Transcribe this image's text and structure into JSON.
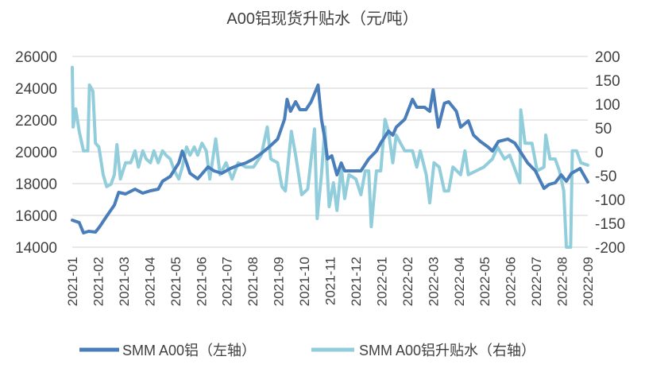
{
  "chart_data": {
    "type": "line",
    "title": "A00铝现货升贴水（元/吨）",
    "xlabel": "",
    "ylabel": "",
    "grid": true,
    "legend_position": "bottom",
    "x_ticks": [
      "2021-01",
      "2021-02",
      "2021-03",
      "2021-04",
      "2021-05",
      "2021-06",
      "2021-07",
      "2021-08",
      "2021-09",
      "2021-10",
      "2021-11",
      "2021-12",
      "2022-01",
      "2022-02",
      "2022-03",
      "2022-04",
      "2022-05",
      "2022-06",
      "2022-07",
      "2022-08",
      "2022-09"
    ],
    "y_left": {
      "range": [
        14000,
        26000
      ],
      "ticks": [
        "14000",
        "16000",
        "18000",
        "20000",
        "22000",
        "24000",
        "26000"
      ]
    },
    "y_right": {
      "range": [
        -200,
        200
      ],
      "ticks": [
        "-200",
        "-150",
        "-100",
        "-50",
        "0",
        "50",
        "100",
        "150",
        "200"
      ]
    },
    "series": [
      {
        "name": "SMM A00铝（左轴）",
        "axis": "left",
        "color": "#4a7ebb",
        "points": [
          [
            "2021-01-01",
            15700
          ],
          [
            "2021-01-09",
            15550
          ],
          [
            "2021-01-14",
            14900
          ],
          [
            "2021-01-20",
            15000
          ],
          [
            "2021-01-28",
            14950
          ],
          [
            "2021-02-03",
            15300
          ],
          [
            "2021-02-11",
            15950
          ],
          [
            "2021-02-20",
            16650
          ],
          [
            "2021-02-25",
            17450
          ],
          [
            "2021-03-03",
            17350
          ],
          [
            "2021-03-14",
            17650
          ],
          [
            "2021-03-23",
            17400
          ],
          [
            "2021-04-02",
            17550
          ],
          [
            "2021-04-11",
            17650
          ],
          [
            "2021-04-16",
            18150
          ],
          [
            "2021-04-25",
            18450
          ],
          [
            "2021-05-05",
            19300
          ],
          [
            "2021-05-09",
            20050
          ],
          [
            "2021-05-14",
            19300
          ],
          [
            "2021-05-18",
            18650
          ],
          [
            "2021-05-27",
            18300
          ],
          [
            "2021-06-09",
            19050
          ],
          [
            "2021-06-16",
            18800
          ],
          [
            "2021-06-25",
            18650
          ],
          [
            "2021-07-05",
            18950
          ],
          [
            "2021-07-14",
            19150
          ],
          [
            "2021-07-23",
            19300
          ],
          [
            "2021-08-02",
            19550
          ],
          [
            "2021-08-11",
            19900
          ],
          [
            "2021-08-20",
            20300
          ],
          [
            "2021-08-30",
            20800
          ],
          [
            "2021-09-08",
            22050
          ],
          [
            "2021-09-11",
            23300
          ],
          [
            "2021-09-15",
            22550
          ],
          [
            "2021-09-21",
            23150
          ],
          [
            "2021-09-26",
            22650
          ],
          [
            "2021-10-03",
            22650
          ],
          [
            "2021-10-09",
            23150
          ],
          [
            "2021-10-14",
            23800
          ],
          [
            "2021-10-17",
            24200
          ],
          [
            "2021-10-21",
            22050
          ],
          [
            "2021-10-25",
            20800
          ],
          [
            "2021-10-28",
            19550
          ],
          [
            "2021-11-03",
            19750
          ],
          [
            "2021-11-09",
            18550
          ],
          [
            "2021-11-14",
            19300
          ],
          [
            "2021-11-18",
            18800
          ],
          [
            "2021-11-28",
            18800
          ],
          [
            "2021-12-07",
            18800
          ],
          [
            "2021-12-16",
            19550
          ],
          [
            "2021-12-25",
            20050
          ],
          [
            "2021-12-30",
            20550
          ],
          [
            "2022-01-09",
            21300
          ],
          [
            "2022-01-14",
            21050
          ],
          [
            "2022-01-18",
            21550
          ],
          [
            "2022-01-28",
            22050
          ],
          [
            "2022-02-07",
            23300
          ],
          [
            "2022-02-12",
            22800
          ],
          [
            "2022-02-21",
            22800
          ],
          [
            "2022-02-27",
            22550
          ],
          [
            "2022-03-01",
            23900
          ],
          [
            "2022-03-07",
            21550
          ],
          [
            "2022-03-14",
            23050
          ],
          [
            "2022-03-19",
            23150
          ],
          [
            "2022-03-28",
            22550
          ],
          [
            "2022-04-03",
            21550
          ],
          [
            "2022-04-12",
            21950
          ],
          [
            "2022-04-18",
            21050
          ],
          [
            "2022-04-26",
            20650
          ],
          [
            "2022-05-05",
            20300
          ],
          [
            "2022-05-10",
            20050
          ],
          [
            "2022-05-17",
            20650
          ],
          [
            "2022-05-28",
            20800
          ],
          [
            "2022-06-06",
            20550
          ],
          [
            "2022-06-12",
            20050
          ],
          [
            "2022-06-21",
            19300
          ],
          [
            "2022-06-30",
            18800
          ],
          [
            "2022-07-10",
            17700
          ],
          [
            "2022-07-16",
            17950
          ],
          [
            "2022-07-23",
            18050
          ],
          [
            "2022-07-30",
            18550
          ],
          [
            "2022-08-06",
            18150
          ],
          [
            "2022-08-12",
            18650
          ],
          [
            "2022-08-22",
            18950
          ],
          [
            "2022-08-31",
            18100
          ]
        ]
      },
      {
        "name": "SMM A00铝升贴水（右轴）",
        "axis": "right",
        "color": "#92cddc",
        "points": [
          [
            "2021-01-01",
            177
          ],
          [
            "2021-01-02",
            52
          ],
          [
            "2021-01-05",
            90
          ],
          [
            "2021-01-09",
            43
          ],
          [
            "2021-01-14",
            2
          ],
          [
            "2021-01-19",
            2
          ],
          [
            "2021-01-21",
            140
          ],
          [
            "2021-01-25",
            127
          ],
          [
            "2021-01-28",
            18
          ],
          [
            "2021-02-02",
            10
          ],
          [
            "2021-02-07",
            -48
          ],
          [
            "2021-02-11",
            -73
          ],
          [
            "2021-02-16",
            -68
          ],
          [
            "2021-02-20",
            -48
          ],
          [
            "2021-02-23",
            15
          ],
          [
            "2021-02-27",
            -57
          ],
          [
            "2021-03-03",
            -23
          ],
          [
            "2021-03-09",
            -23
          ],
          [
            "2021-03-14",
            2
          ],
          [
            "2021-03-18",
            -32
          ],
          [
            "2021-03-23",
            2
          ],
          [
            "2021-03-27",
            -15
          ],
          [
            "2021-04-02",
            -23
          ],
          [
            "2021-04-06",
            2
          ],
          [
            "2021-04-11",
            -23
          ],
          [
            "2021-04-16",
            2
          ],
          [
            "2021-04-20",
            -7
          ],
          [
            "2021-04-25",
            -15
          ],
          [
            "2021-04-30",
            -40
          ],
          [
            "2021-05-05",
            -57
          ],
          [
            "2021-05-09",
            -32
          ],
          [
            "2021-05-14",
            10
          ],
          [
            "2021-05-18",
            -7
          ],
          [
            "2021-05-23",
            10
          ],
          [
            "2021-05-27",
            -7
          ],
          [
            "2021-06-02",
            18
          ],
          [
            "2021-06-07",
            2
          ],
          [
            "2021-06-11",
            -57
          ],
          [
            "2021-06-18",
            27
          ],
          [
            "2021-06-23",
            -48
          ],
          [
            "2021-06-30",
            -23
          ],
          [
            "2021-07-07",
            -57
          ],
          [
            "2021-07-14",
            -23
          ],
          [
            "2021-07-23",
            -32
          ],
          [
            "2021-08-02",
            -32
          ],
          [
            "2021-08-11",
            -7
          ],
          [
            "2021-08-18",
            52
          ],
          [
            "2021-08-22",
            -15
          ],
          [
            "2021-08-30",
            -23
          ],
          [
            "2021-09-05",
            -73
          ],
          [
            "2021-09-09",
            -82
          ],
          [
            "2021-09-16",
            43
          ],
          [
            "2021-09-21",
            -7
          ],
          [
            "2021-09-28",
            -90
          ],
          [
            "2021-10-05",
            -78
          ],
          [
            "2021-10-13",
            48
          ],
          [
            "2021-10-16",
            -140
          ],
          [
            "2021-10-21",
            -48
          ],
          [
            "2021-10-25",
            52
          ],
          [
            "2021-10-30",
            -115
          ],
          [
            "2021-11-05",
            -65
          ],
          [
            "2021-11-09",
            -123
          ],
          [
            "2021-11-14",
            -32
          ],
          [
            "2021-11-18",
            -98
          ],
          [
            "2021-11-23",
            -48
          ],
          [
            "2021-12-01",
            -57
          ],
          [
            "2021-12-07",
            -90
          ],
          [
            "2021-12-12",
            -40
          ],
          [
            "2021-12-16",
            -40
          ],
          [
            "2021-12-19",
            -157
          ],
          [
            "2021-12-25",
            -40
          ],
          [
            "2021-12-30",
            -40
          ],
          [
            "2022-01-05",
            68
          ],
          [
            "2022-01-09",
            43
          ],
          [
            "2022-01-14",
            -23
          ],
          [
            "2022-01-18",
            35
          ],
          [
            "2022-01-23",
            18
          ],
          [
            "2022-01-28",
            2
          ],
          [
            "2022-02-07",
            2
          ],
          [
            "2022-02-12",
            -32
          ],
          [
            "2022-02-16",
            2
          ],
          [
            "2022-02-23",
            -48
          ],
          [
            "2022-02-27",
            -107
          ],
          [
            "2022-03-02",
            -23
          ],
          [
            "2022-03-08",
            -32
          ],
          [
            "2022-03-14",
            -82
          ],
          [
            "2022-03-19",
            -82
          ],
          [
            "2022-03-24",
            -32
          ],
          [
            "2022-04-03",
            -48
          ],
          [
            "2022-04-08",
            2
          ],
          [
            "2022-04-12",
            -48
          ],
          [
            "2022-04-21",
            -40
          ],
          [
            "2022-04-30",
            -32
          ],
          [
            "2022-05-10",
            -15
          ],
          [
            "2022-05-16",
            10
          ],
          [
            "2022-05-24",
            -15
          ],
          [
            "2022-05-30",
            -7
          ],
          [
            "2022-06-07",
            -40
          ],
          [
            "2022-06-12",
            -65
          ],
          [
            "2022-06-13",
            88
          ],
          [
            "2022-06-18",
            18
          ],
          [
            "2022-06-26",
            18
          ],
          [
            "2022-07-02",
            -40
          ],
          [
            "2022-07-10",
            -32
          ],
          [
            "2022-07-12",
            35
          ],
          [
            "2022-07-17",
            -15
          ],
          [
            "2022-07-23",
            -15
          ],
          [
            "2022-07-28",
            -40
          ],
          [
            "2022-08-03",
            -82
          ],
          [
            "2022-08-06",
            -200
          ],
          [
            "2022-08-11",
            -200
          ],
          [
            "2022-08-13",
            2
          ],
          [
            "2022-08-18",
            2
          ],
          [
            "2022-08-23",
            -23
          ],
          [
            "2022-08-31",
            -28
          ]
        ]
      }
    ]
  }
}
